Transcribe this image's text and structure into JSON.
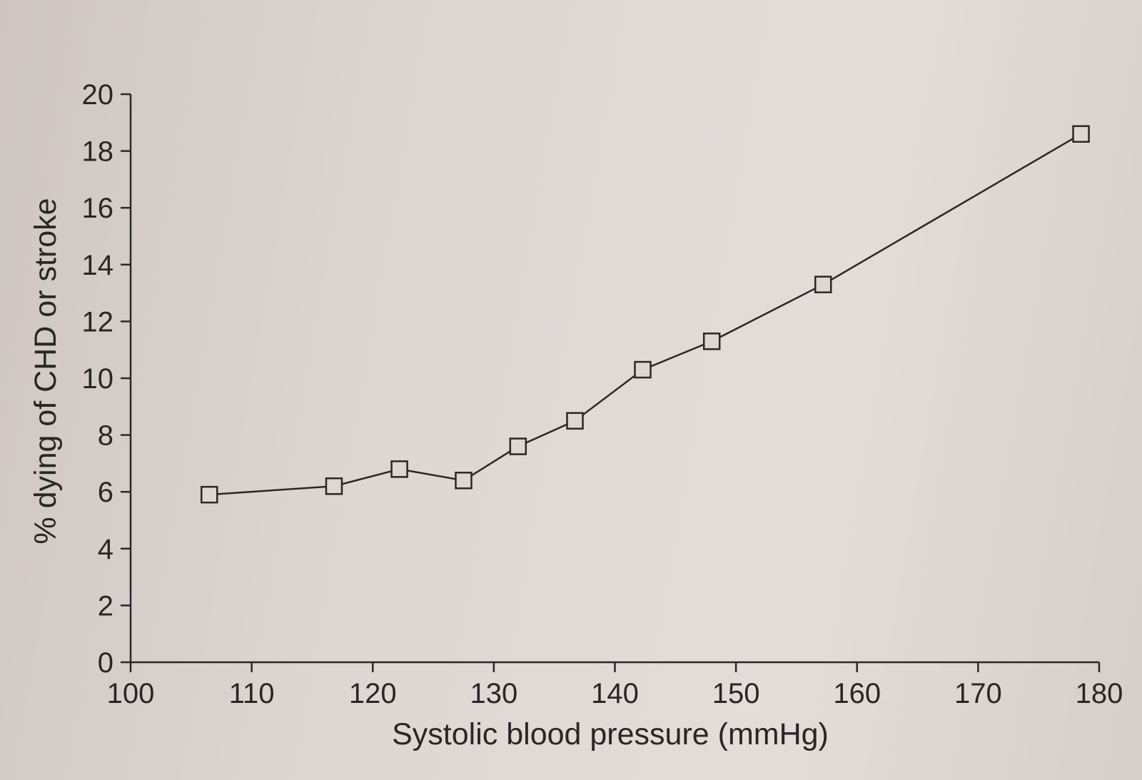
{
  "chart_data": {
    "type": "line",
    "xlabel": "Systolic blood pressure (mmHg)",
    "ylabel": "% dying of CHD or stroke",
    "xlim": [
      100,
      180
    ],
    "ylim": [
      0,
      20
    ],
    "x_ticks": [
      "100",
      "110",
      "120",
      "130",
      "140",
      "150",
      "160",
      "170",
      "180"
    ],
    "y_ticks": [
      "0",
      "2",
      "4",
      "6",
      "8",
      "10",
      "12",
      "14",
      "16",
      "18",
      "20"
    ],
    "marker": "open-square",
    "grid": false,
    "series": [
      {
        "x": [
          106.5,
          116.8,
          122.2,
          127.5,
          132.0,
          136.7,
          142.3,
          148.0,
          157.2,
          178.5
        ],
        "y": [
          5.9,
          6.2,
          6.8,
          6.4,
          7.6,
          8.5,
          10.3,
          11.3,
          13.3,
          18.6
        ]
      }
    ],
    "colors": {
      "line": "#2b2727",
      "axis": "#2b2727",
      "text": "#2a2626"
    }
  }
}
